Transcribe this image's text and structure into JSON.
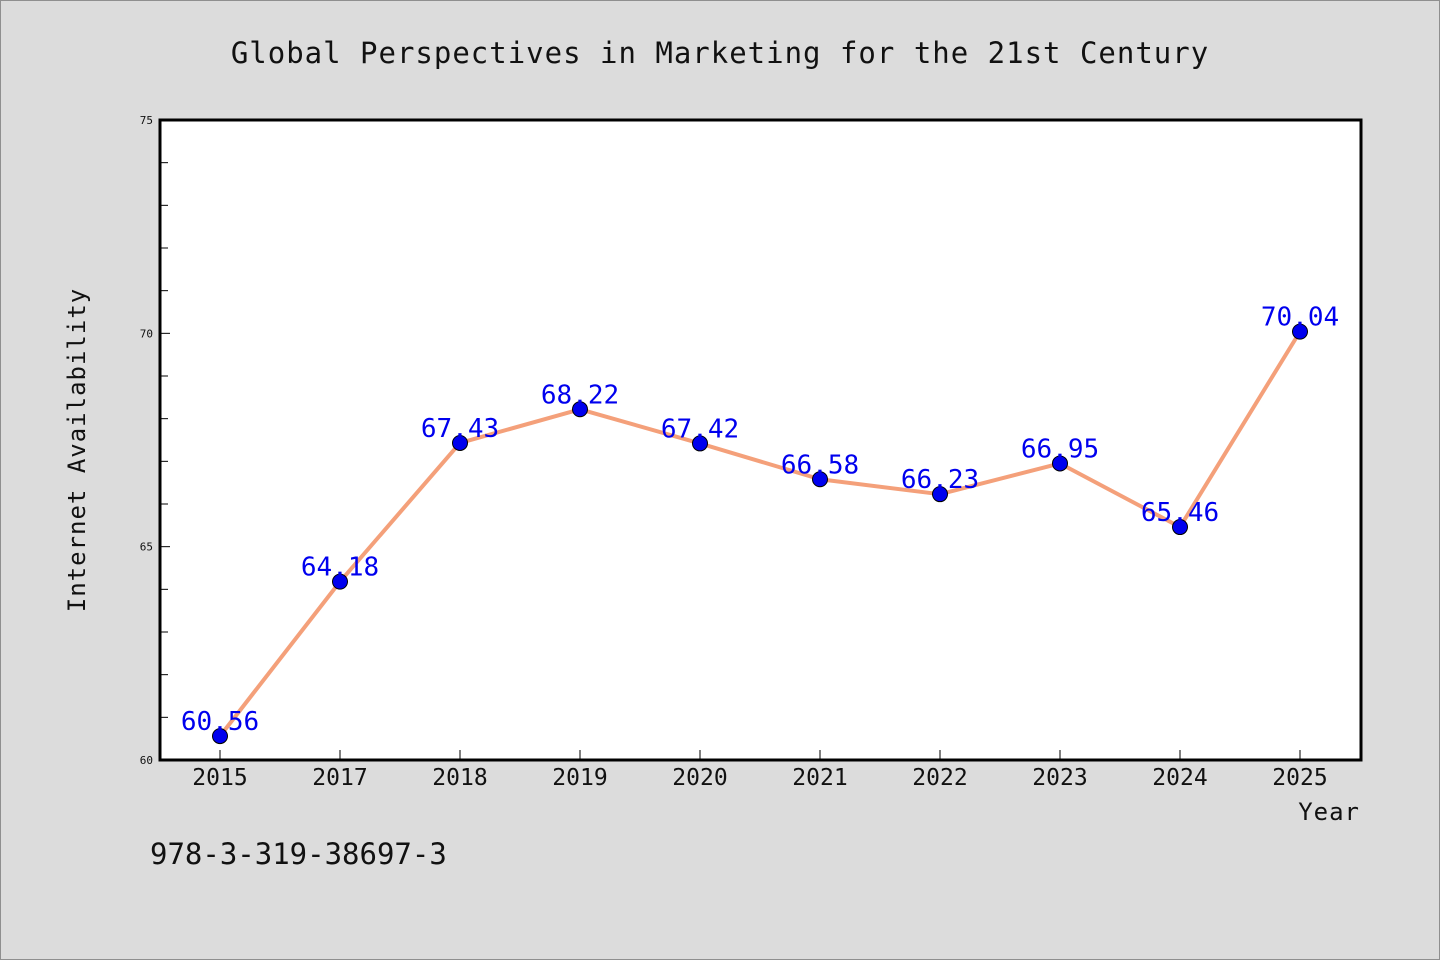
{
  "colors": {
    "background": "#dcdcdc",
    "plot_background": "#ffffff",
    "line": "#f4a07a",
    "marker": "#0000ee",
    "data_label": "#0000ee"
  },
  "chart_data": {
    "type": "line",
    "title": "Global Perspectives in Marketing for the 21st Century",
    "xlabel": "Year",
    "ylabel": "Internet Availability",
    "categories": [
      "2015",
      "2017",
      "2018",
      "2019",
      "2020",
      "2021",
      "2022",
      "2023",
      "2024",
      "2025"
    ],
    "series": [
      {
        "values": [
          60.56,
          64.18,
          67.43,
          68.22,
          67.42,
          66.58,
          66.23,
          66.95,
          65.46,
          70.04
        ],
        "labels": [
          "60.56",
          "64.18",
          "67.43",
          "68.22",
          "67.42",
          "66.58",
          "66.23",
          "66.95",
          "65.46",
          "70.04"
        ]
      }
    ],
    "ylim": [
      60,
      75
    ],
    "yticks": [
      60,
      65,
      70,
      75
    ],
    "ytick_labels": [
      "60",
      "65",
      "70",
      "75"
    ],
    "grid": false,
    "legend": "none"
  },
  "footer": {
    "isbn": "978-3-319-38697-3"
  }
}
